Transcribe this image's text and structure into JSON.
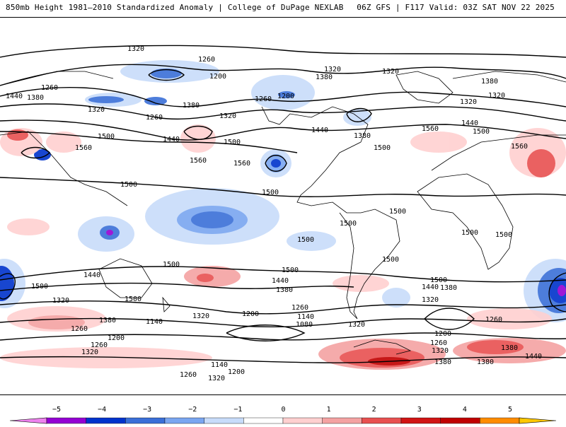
{
  "header": {
    "title": "850mb Height 1981–2010 Standardized Anomaly | College of DuPage NEXLAB",
    "run_info": "06Z GFS | F117 Valid: 03Z SAT NOV 22 2025"
  },
  "contour_labels": [
    "1320",
    "1260",
    "1200",
    "1260",
    "1380",
    "1440",
    "1320",
    "1260",
    "1380",
    "1320",
    "1260",
    "1200",
    "1440",
    "1500",
    "1560",
    "1500",
    "1560",
    "1560",
    "1500",
    "1320",
    "1380",
    "1320",
    "1440",
    "1380",
    "1320",
    "1440",
    "1500",
    "1560",
    "1560",
    "1500",
    "1500",
    "1500",
    "1500",
    "1500",
    "1500",
    "1500",
    "1500",
    "1500",
    "1500",
    "1440",
    "1500",
    "1500",
    "1380",
    "1440",
    "1380",
    "1320",
    "1380",
    "1320",
    "1200",
    "1140",
    "1080",
    "1260",
    "1140",
    "1200",
    "1260",
    "1320",
    "1260",
    "1320",
    "1320",
    "1260",
    "1380",
    "1140",
    "1200",
    "1320",
    "1260",
    "1380",
    "1440",
    "1380",
    "1500",
    "1440",
    "1380",
    "1320",
    "1320",
    "1200",
    "1260"
  ],
  "colorbar": {
    "ticks": [
      "−5",
      "−4",
      "−3",
      "−2",
      "−1",
      "0",
      "1",
      "2",
      "3",
      "4",
      "5"
    ],
    "colors": [
      "#ee82ee",
      "#9400d3",
      "#0033cc",
      "#3a6fd8",
      "#7aa6f0",
      "#c8dcfa",
      "#ffffff",
      "#ffd0d0",
      "#f4a2a2",
      "#e85050",
      "#d11414",
      "#c00000",
      "#ff8c00",
      "#ffc800"
    ]
  },
  "icons": [
    "colorbar-left-arrow",
    "colorbar-right-arrow"
  ]
}
